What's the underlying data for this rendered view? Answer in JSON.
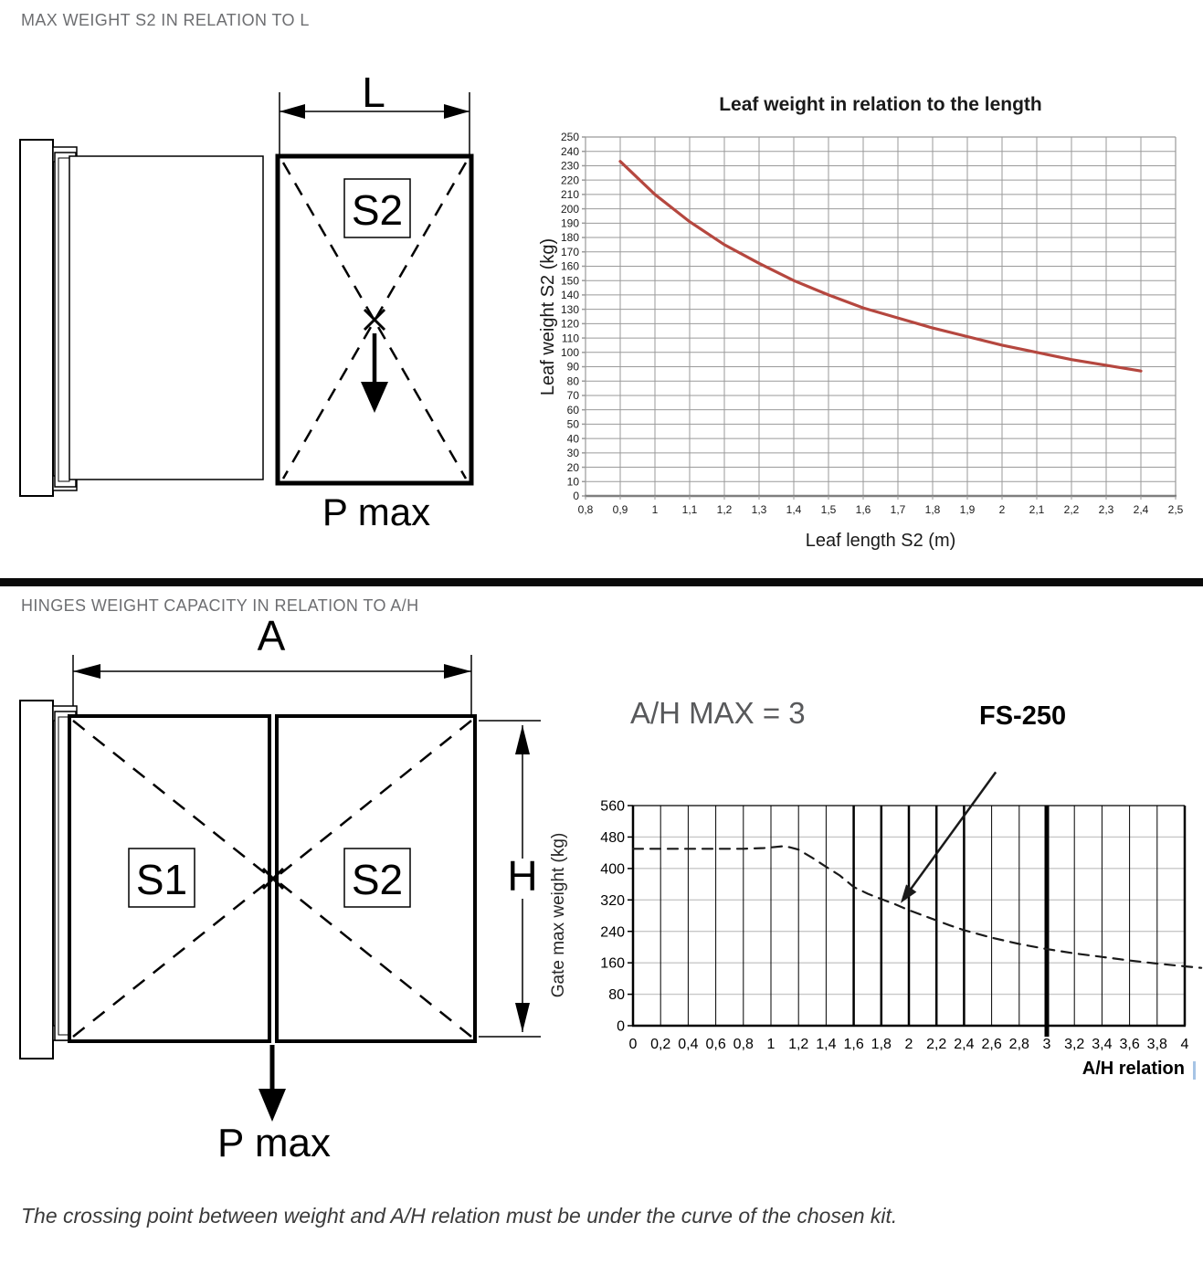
{
  "page": {
    "section1_title": "MAX WEIGHT S2 IN RELATION TO L",
    "section2_title": "HINGES WEIGHT CAPACITY IN RELATION TO A/H",
    "footnote": "The crossing point between weight and A/H relation must be under the curve of the chosen kit.",
    "title_color": "#6d6e71"
  },
  "diagram1": {
    "dim_label": "L",
    "leaf_label": "S2",
    "pmax_label": "P max"
  },
  "diagram2": {
    "dim_label_width": "A",
    "dim_label_height": "H",
    "leaf1_label": "S1",
    "leaf2_label": "S2",
    "pmax_label": "P max"
  },
  "annotations": {
    "ah_max_label": "A/H MAX = 3",
    "kit_label": "FS-250"
  },
  "chart_data": [
    {
      "type": "line",
      "title": "Leaf weight in relation to the length",
      "xlabel": "Leaf length S2 (m)",
      "ylabel": "Leaf weight S2 (kg)",
      "xlim": [
        0.8,
        2.5
      ],
      "ylim": [
        0,
        250
      ],
      "grid": true,
      "grid_color": "#9a9a9a",
      "line_color": "#b5473f",
      "line_style": "solid",
      "legend": "none",
      "x_ticks": [
        "0,8",
        "0,9",
        "1",
        "1,1",
        "1,2",
        "1,3",
        "1,4",
        "1,5",
        "1,6",
        "1,7",
        "1,8",
        "1,9",
        "2",
        "2,1",
        "2,2",
        "2,3",
        "2,4",
        "2,5"
      ],
      "x_tick_values": [
        0.8,
        0.9,
        1,
        1.1,
        1.2,
        1.3,
        1.4,
        1.5,
        1.6,
        1.7,
        1.8,
        1.9,
        2,
        2.1,
        2.2,
        2.3,
        2.4,
        2.5
      ],
      "y_ticks": [
        "0",
        "10",
        "20",
        "30",
        "40",
        "50",
        "60",
        "70",
        "80",
        "90",
        "100",
        "110",
        "120",
        "130",
        "140",
        "150",
        "160",
        "170",
        "180",
        "190",
        "200",
        "210",
        "220",
        "230",
        "240",
        "250"
      ],
      "y_tick_values": [
        0,
        10,
        20,
        30,
        40,
        50,
        60,
        70,
        80,
        90,
        100,
        110,
        120,
        130,
        140,
        150,
        160,
        170,
        180,
        190,
        200,
        210,
        220,
        230,
        240,
        250
      ],
      "points": [
        [
          0.9,
          233
        ],
        [
          1.0,
          210
        ],
        [
          1.1,
          191
        ],
        [
          1.2,
          175
        ],
        [
          1.3,
          162
        ],
        [
          1.4,
          150
        ],
        [
          1.5,
          140
        ],
        [
          1.6,
          131
        ],
        [
          1.7,
          124
        ],
        [
          1.8,
          117
        ],
        [
          1.9,
          111
        ],
        [
          2.0,
          105
        ],
        [
          2.1,
          100
        ],
        [
          2.2,
          95
        ],
        [
          2.3,
          91
        ],
        [
          2.4,
          87
        ]
      ]
    },
    {
      "type": "line",
      "title": "",
      "xlabel": "A/H relation",
      "ylabel": "Gate max weight (kg)",
      "xlim": [
        0,
        4
      ],
      "ylim": [
        0,
        560
      ],
      "grid": true,
      "grid_color_h": "#c8c8c8",
      "grid_color_v": "#000000",
      "bold_gridlines_x": [
        1.6,
        1.8,
        2,
        2.2,
        2.4
      ],
      "emphasis_gridline_x": 3,
      "line_color": "#1a1a1a",
      "line_style": "dashed",
      "legend": "none",
      "x_ticks": [
        "0",
        "0,2",
        "0,4",
        "0,6",
        "0,8",
        "1",
        "1,2",
        "1,4",
        "1,6",
        "1,8",
        "2",
        "2,2",
        "2,4",
        "2,6",
        "2,8",
        "3",
        "3,2",
        "3,4",
        "3,6",
        "3,8",
        "4"
      ],
      "x_tick_values": [
        0,
        0.2,
        0.4,
        0.6,
        0.8,
        1,
        1.2,
        1.4,
        1.6,
        1.8,
        2,
        2.2,
        2.4,
        2.6,
        2.8,
        3,
        3.2,
        3.4,
        3.6,
        3.8,
        4
      ],
      "y_ticks": [
        "0",
        "80",
        "160",
        "240",
        "320",
        "400",
        "480",
        "560"
      ],
      "y_tick_values": [
        0,
        80,
        160,
        240,
        320,
        400,
        480,
        560
      ],
      "points": [
        [
          0,
          450
        ],
        [
          0.2,
          450
        ],
        [
          0.4,
          450
        ],
        [
          0.6,
          450
        ],
        [
          0.8,
          450
        ],
        [
          0.95,
          452
        ],
        [
          1.1,
          457
        ],
        [
          1.2,
          448
        ],
        [
          1.3,
          427
        ],
        [
          1.4,
          404
        ],
        [
          1.5,
          382
        ],
        [
          1.6,
          353
        ],
        [
          1.7,
          336
        ],
        [
          1.8,
          322
        ],
        [
          1.9,
          309
        ],
        [
          2,
          294
        ],
        [
          2.1,
          281
        ],
        [
          2.2,
          268
        ],
        [
          2.3,
          255
        ],
        [
          2.4,
          243
        ],
        [
          2.6,
          224
        ],
        [
          2.8,
          208
        ],
        [
          3,
          195
        ],
        [
          3.2,
          184
        ],
        [
          3.4,
          175
        ],
        [
          3.6,
          166
        ],
        [
          3.8,
          158
        ],
        [
          4,
          151
        ],
        [
          4.12,
          147
        ]
      ],
      "annotation_arrow": {
        "from": [
          2.63,
          645
        ],
        "to": [
          1.94,
          312
        ],
        "label": "FS-250"
      }
    }
  ]
}
